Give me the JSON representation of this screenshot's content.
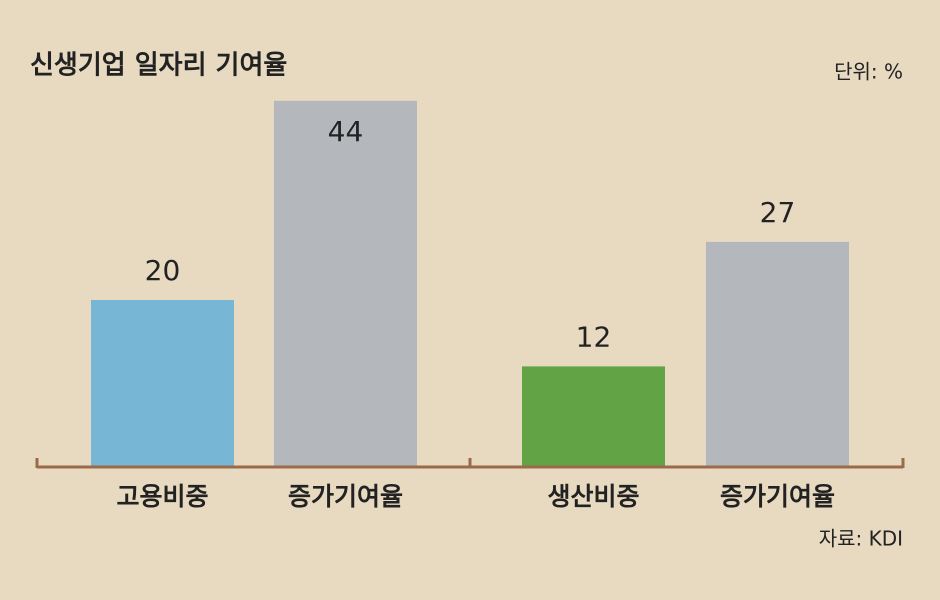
{
  "chart_data": {
    "type": "bar",
    "title": "신생기업 일자리 기여율",
    "unit": "단위: %",
    "source": "자료: KDI",
    "categories": [
      "고용비중",
      "증가기여율",
      "생산비중",
      "증가기여율"
    ],
    "values": [
      20,
      44,
      12,
      27
    ],
    "colors": [
      "#78b6d6",
      "#b4b8bc",
      "#62a445",
      "#b4b8bc"
    ]
  }
}
